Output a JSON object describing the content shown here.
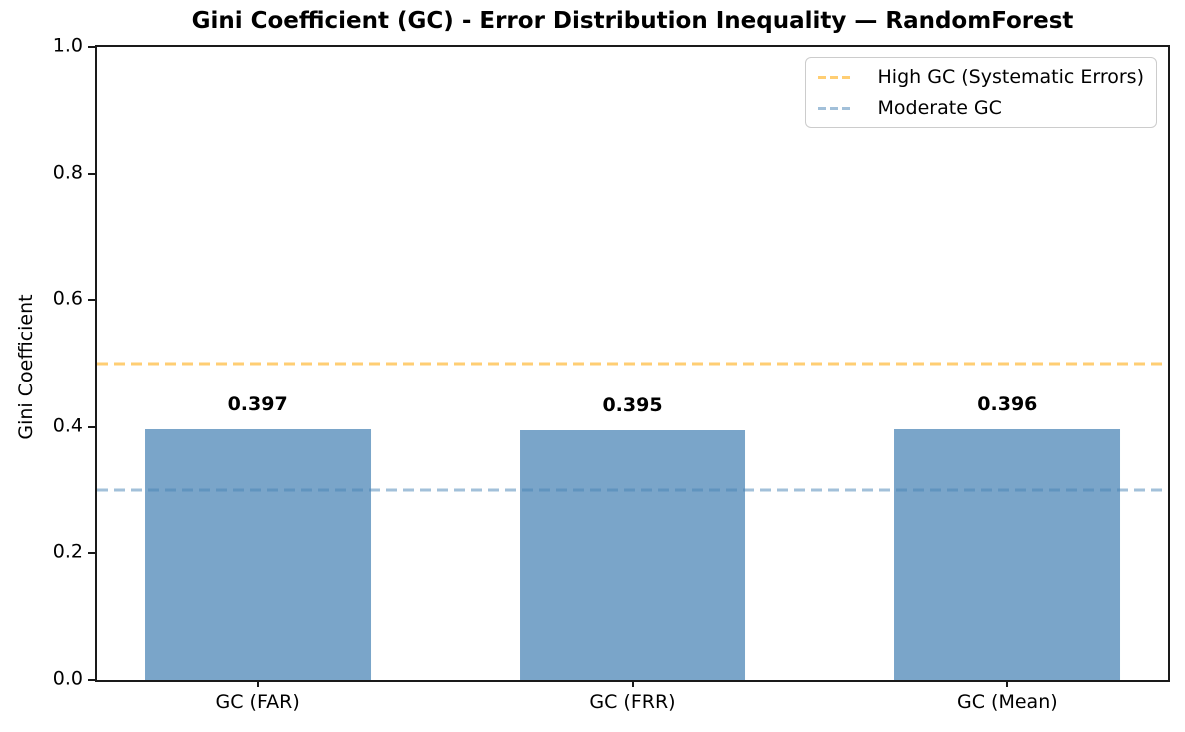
{
  "chart_data": {
    "type": "bar",
    "title": "Gini Coefficient (GC) - Error Distribution Inequality — RandomForest",
    "xlabel": "",
    "ylabel": "Gini Coefficient",
    "categories": [
      "GC (FAR)",
      "GC (FRR)",
      "GC (Mean)"
    ],
    "values": [
      0.397,
      0.395,
      0.396
    ],
    "bar_labels": [
      "0.397",
      "0.395",
      "0.396"
    ],
    "bar_color": "rgba(70,130,180,0.72)",
    "ylim": [
      0.0,
      1.0
    ],
    "yticks": [
      "0.0",
      "0.2",
      "0.4",
      "0.6",
      "0.8",
      "1.0"
    ],
    "grid": false,
    "legend_position": "upper right",
    "reference_lines": [
      {
        "value": 0.5,
        "label": "High GC (Systematic Errors)",
        "color": "rgba(255,165,0,0.55)",
        "style": "dashed"
      },
      {
        "value": 0.3,
        "label": "Moderate GC",
        "color": "rgba(70,130,180,0.5)",
        "style": "dashed"
      }
    ],
    "spine_color": "#1a1a1a",
    "legend_border_color": "#cccccc"
  }
}
